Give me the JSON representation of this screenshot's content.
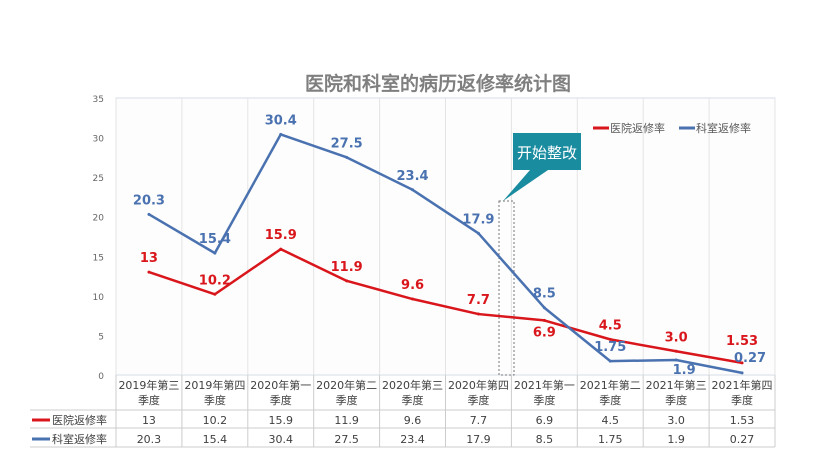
{
  "chart_data": {
    "type": "line",
    "title": "医院和科室的病历返修率统计图",
    "categories": [
      "2019年第三季度",
      "2019年第四季度",
      "2020年第一季度",
      "2020年第二季度",
      "2020年第三季度",
      "2020年第四季度",
      "2021年第一季度",
      "2021年第二季度",
      "2021年第三季度",
      "2021年第四季度"
    ],
    "category_lines": [
      [
        "2019年第三",
        "季度"
      ],
      [
        "2019年第四",
        "季度"
      ],
      [
        "2020年第一",
        "季度"
      ],
      [
        "2020年第二",
        "季度"
      ],
      [
        "2020年第三",
        "季度"
      ],
      [
        "2020年第四",
        "季度"
      ],
      [
        "2021年第一",
        "季度"
      ],
      [
        "2021年第二",
        "季度"
      ],
      [
        "2021年第三",
        "季度"
      ],
      [
        "2021年第四",
        "季度"
      ]
    ],
    "series": [
      {
        "name": "医院返修率",
        "color": "#d9161c",
        "values": [
          13,
          10.2,
          15.9,
          11.9,
          9.6,
          7.7,
          6.9,
          4.5,
          3.0,
          1.53
        ],
        "labels": [
          "13",
          "10.2",
          "15.9",
          "11.9",
          "9.6",
          "7.7",
          "6.9",
          "4.5",
          "3.0",
          "1.53"
        ]
      },
      {
        "name": "科室返修率",
        "color": "#4a72b0",
        "values": [
          20.3,
          15.4,
          30.4,
          27.5,
          23.4,
          17.9,
          8.5,
          1.75,
          1.9,
          0.27
        ],
        "labels": [
          "20.3",
          "15.4",
          "30.4",
          "27.5",
          "23.4",
          "17.9",
          "8.5",
          "1.75",
          "1.9",
          "0.27"
        ]
      }
    ],
    "ylim": [
      0,
      35
    ],
    "yticks": [
      "0",
      "5",
      "10",
      "15",
      "20",
      "25",
      "30",
      "35"
    ],
    "grid": "vertical",
    "legend": "top-right",
    "data_table": true,
    "annotation": {
      "text": "开始整改",
      "color": "#1a8ca0",
      "between": [
        "2020年第四季度",
        "2021年第一季度"
      ]
    }
  }
}
